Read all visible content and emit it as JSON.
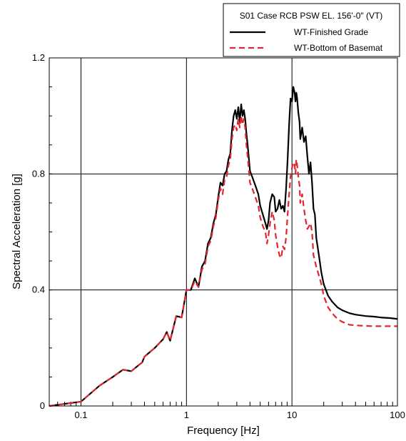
{
  "chart_data": {
    "type": "line",
    "title": "S01 Case RCB PSW EL. 156'-0\" (VT)",
    "xlabel": "Frequency [Hz]",
    "ylabel": "Spectral Acceleration [g]",
    "x_scale": "log",
    "xlim": [
      0.05,
      100
    ],
    "ylim": [
      0,
      1.2
    ],
    "x_ticks": [
      0.1,
      1,
      10,
      100
    ],
    "x_tick_labels": [
      "0.1",
      "1",
      "10",
      "100"
    ],
    "y_ticks": [
      0,
      0.4,
      0.8,
      1.2
    ],
    "y_tick_labels": [
      "0",
      "0.4",
      "0.8",
      "1.2"
    ],
    "grid": true,
    "legend_position": "top-right",
    "series": [
      {
        "name": "WT-Finished Grade",
        "color": "#000000",
        "style": "solid",
        "x": [
          0.05,
          0.1,
          0.15,
          0.2,
          0.25,
          0.3,
          0.35,
          0.38,
          0.4,
          0.5,
          0.6,
          0.65,
          0.7,
          0.8,
          0.9,
          1.0,
          1.1,
          1.2,
          1.3,
          1.4,
          1.5,
          1.6,
          1.7,
          1.8,
          1.9,
          2.0,
          2.1,
          2.2,
          2.3,
          2.4,
          2.5,
          2.6,
          2.7,
          2.8,
          2.9,
          3.0,
          3.1,
          3.2,
          3.3,
          3.4,
          3.5,
          3.6,
          3.7,
          3.8,
          4.0,
          4.2,
          4.5,
          4.8,
          5.0,
          5.3,
          5.6,
          5.8,
          6.0,
          6.2,
          6.5,
          6.8,
          7.0,
          7.3,
          7.6,
          7.9,
          8.2,
          8.5,
          8.8,
          9.1,
          9.4,
          9.7,
          10.0,
          10.3,
          10.6,
          10.8,
          11.0,
          11.2,
          11.5,
          11.8,
          12.0,
          12.5,
          13.0,
          13.5,
          14.0,
          14.5,
          15.0,
          15.5,
          16.0,
          16.5,
          17.0,
          18.0,
          19.0,
          20.0,
          22.0,
          24.0,
          27.0,
          30.0,
          35.0,
          40.0,
          50.0,
          60.0,
          70.0,
          85.0,
          100.0
        ],
        "y": [
          0.0,
          0.015,
          0.07,
          0.1,
          0.125,
          0.12,
          0.14,
          0.15,
          0.17,
          0.2,
          0.23,
          0.255,
          0.225,
          0.31,
          0.305,
          0.4,
          0.4,
          0.44,
          0.41,
          0.48,
          0.5,
          0.56,
          0.58,
          0.63,
          0.66,
          0.72,
          0.77,
          0.76,
          0.8,
          0.81,
          0.85,
          0.87,
          0.95,
          1.0,
          1.02,
          0.99,
          1.03,
          0.98,
          1.04,
          1.0,
          1.02,
          0.99,
          0.94,
          0.9,
          0.81,
          0.79,
          0.76,
          0.73,
          0.69,
          0.66,
          0.63,
          0.61,
          0.64,
          0.7,
          0.73,
          0.72,
          0.67,
          0.68,
          0.71,
          0.68,
          0.69,
          0.67,
          0.75,
          0.85,
          0.97,
          1.06,
          1.05,
          1.1,
          1.08,
          1.05,
          1.08,
          1.06,
          1.01,
          0.98,
          0.92,
          0.96,
          0.91,
          0.93,
          0.86,
          0.8,
          0.84,
          0.77,
          0.68,
          0.66,
          0.58,
          0.52,
          0.46,
          0.42,
          0.38,
          0.36,
          0.34,
          0.33,
          0.32,
          0.315,
          0.31,
          0.308,
          0.305,
          0.303,
          0.3
        ]
      },
      {
        "name": "WT-Bottom of Basemat",
        "color": "#e0262e",
        "style": "dashed",
        "x": [
          0.05,
          0.1,
          0.15,
          0.2,
          0.25,
          0.3,
          0.35,
          0.38,
          0.4,
          0.5,
          0.6,
          0.65,
          0.7,
          0.8,
          0.9,
          1.0,
          1.1,
          1.2,
          1.3,
          1.4,
          1.5,
          1.6,
          1.7,
          1.8,
          1.9,
          2.0,
          2.1,
          2.2,
          2.3,
          2.4,
          2.5,
          2.6,
          2.7,
          2.8,
          2.9,
          3.0,
          3.1,
          3.2,
          3.3,
          3.4,
          3.5,
          3.6,
          3.7,
          3.8,
          4.0,
          4.2,
          4.5,
          4.8,
          5.0,
          5.3,
          5.6,
          5.8,
          6.0,
          6.2,
          6.5,
          6.8,
          7.0,
          7.3,
          7.6,
          7.9,
          8.2,
          8.5,
          8.8,
          9.1,
          9.4,
          9.7,
          10.0,
          10.3,
          10.6,
          10.8,
          11.0,
          11.2,
          11.5,
          11.8,
          12.0,
          12.5,
          13.0,
          13.5,
          14.0,
          14.5,
          15.0,
          15.5,
          16.0,
          16.5,
          17.0,
          18.0,
          19.0,
          20.0,
          22.0,
          24.0,
          27.0,
          30.0,
          35.0,
          40.0,
          50.0,
          60.0,
          70.0,
          85.0,
          100.0
        ],
        "y": [
          0.0,
          0.015,
          0.07,
          0.1,
          0.125,
          0.12,
          0.14,
          0.15,
          0.17,
          0.2,
          0.23,
          0.255,
          0.225,
          0.31,
          0.305,
          0.4,
          0.4,
          0.43,
          0.41,
          0.47,
          0.49,
          0.55,
          0.57,
          0.62,
          0.65,
          0.71,
          0.75,
          0.73,
          0.78,
          0.79,
          0.83,
          0.85,
          0.92,
          0.96,
          0.97,
          0.95,
          0.99,
          0.96,
          1.0,
          0.97,
          0.99,
          0.96,
          0.9,
          0.86,
          0.77,
          0.75,
          0.72,
          0.69,
          0.65,
          0.62,
          0.6,
          0.56,
          0.59,
          0.63,
          0.67,
          0.64,
          0.59,
          0.55,
          0.52,
          0.51,
          0.55,
          0.54,
          0.58,
          0.66,
          0.73,
          0.79,
          0.82,
          0.84,
          0.83,
          0.8,
          0.85,
          0.83,
          0.79,
          0.76,
          0.7,
          0.73,
          0.68,
          0.64,
          0.61,
          0.62,
          0.63,
          0.6,
          0.52,
          0.5,
          0.48,
          0.45,
          0.42,
          0.38,
          0.34,
          0.32,
          0.3,
          0.29,
          0.28,
          0.278,
          0.276,
          0.275,
          0.275,
          0.275,
          0.275
        ]
      }
    ]
  }
}
